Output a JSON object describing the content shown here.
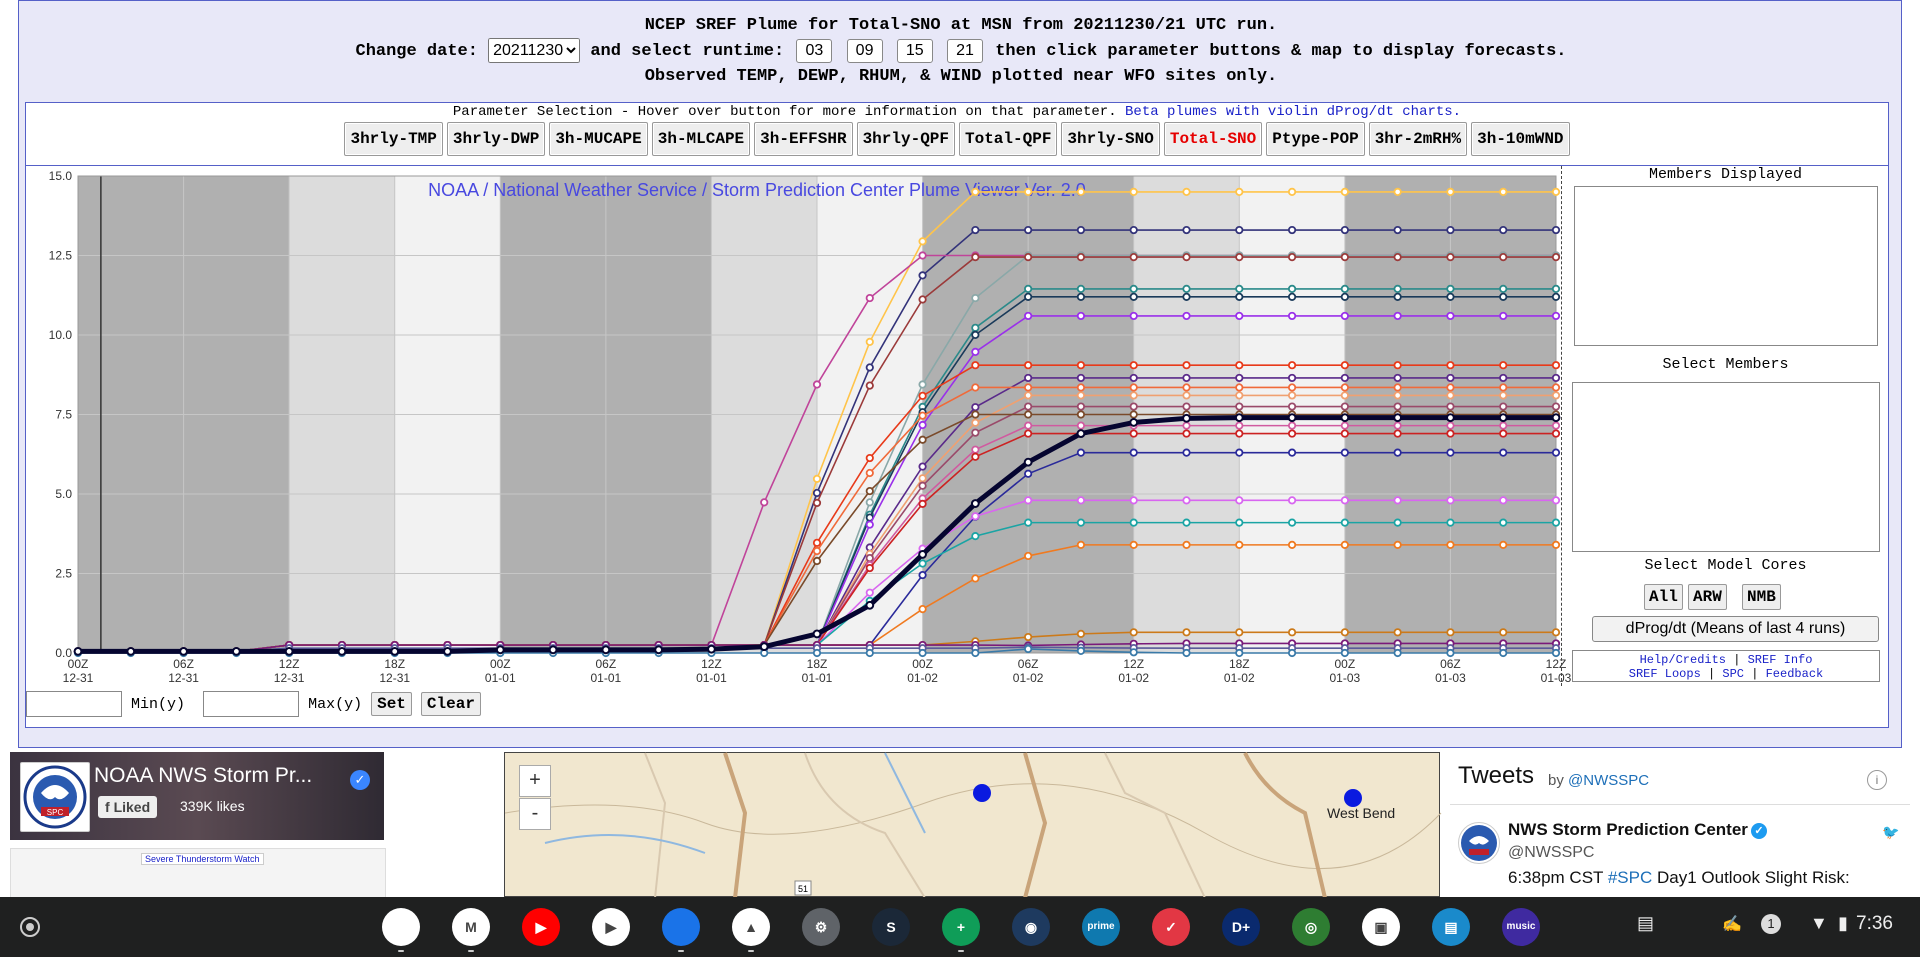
{
  "title": {
    "line1": "NCEP SREF Plume for Total-SNO at MSN from 20211230/21 UTC run.",
    "change_date": "Change date:",
    "date_value": "20211230",
    "and_select": "and select runtime:",
    "runtimes": [
      "03",
      "09",
      "15",
      "21"
    ],
    "then_click": "then click parameter buttons & map to display forecasts.",
    "line3": "Observed TEMP, DEWP, RHUM, & WIND plotted near WFO sites only."
  },
  "params": {
    "header": "Parameter Selection - Hover over button for more information on that parameter.",
    "beta": "Beta plumes with violin dProg/dt charts.",
    "buttons": [
      "3hrly-TMP",
      "3hrly-DWP",
      "3h-MUCAPE",
      "3h-MLCAPE",
      "3h-EFFSHR",
      "3hrly-QPF",
      "Total-QPF",
      "3hrly-SNO",
      "Total-SNO",
      "Ptype-POP",
      "3hr-2mRH%",
      "3h-10mWND"
    ],
    "active": "Total-SNO"
  },
  "chart_data": {
    "type": "line",
    "title": "NOAA / National Weather Service / Storm Prediction Center Plume Viewer Ver. 2.0",
    "ylim": [
      0,
      15
    ],
    "yticks": [
      "0.0",
      "2.5",
      "5.0",
      "7.5",
      "10.0",
      "12.5",
      "15.0"
    ],
    "x_ticks": [
      [
        "00Z",
        "12-31"
      ],
      [
        "06Z",
        "12-31"
      ],
      [
        "12Z",
        "12-31"
      ],
      [
        "18Z",
        "12-31"
      ],
      [
        "00Z",
        "01-01"
      ],
      [
        "06Z",
        "01-01"
      ],
      [
        "12Z",
        "01-01"
      ],
      [
        "18Z",
        "01-01"
      ],
      [
        "00Z",
        "01-02"
      ],
      [
        "06Z",
        "01-02"
      ],
      [
        "12Z",
        "01-02"
      ],
      [
        "18Z",
        "01-02"
      ],
      [
        "00Z",
        "01-03"
      ],
      [
        "06Z",
        "01-03"
      ],
      [
        "12Z",
        "01-03"
      ]
    ],
    "x_hours": [
      0,
      3,
      6,
      9,
      12,
      15,
      18,
      21,
      24,
      27,
      30,
      33,
      36,
      39,
      42,
      45,
      48,
      51,
      54,
      57,
      60,
      63,
      66,
      69,
      72,
      75,
      78,
      81,
      84
    ],
    "x_range_hours": [
      0,
      84
    ],
    "night_bands_hours": [
      [
        0,
        12
      ],
      [
        24,
        36
      ],
      [
        48,
        60
      ],
      [
        72,
        84
      ]
    ],
    "dusk_bands_hours": [
      [
        12,
        18
      ],
      [
        36,
        42
      ],
      [
        60,
        66
      ]
    ],
    "now_line_hours": 1.3,
    "mean": {
      "color": "#050530",
      "final": 7.4,
      "values": [
        0.05,
        0.05,
        0.05,
        0.05,
        0.05,
        0.05,
        0.05,
        0.05,
        0.1,
        0.1,
        0.1,
        0.1,
        0.12,
        0.2,
        0.6,
        1.5,
        3.1,
        4.7,
        6.0,
        6.9,
        7.25,
        7.38,
        7.4,
        7.4,
        7.4,
        7.4,
        7.4,
        7.4,
        7.4
      ]
    },
    "members": [
      {
        "color": "#ffc44a",
        "onset": 39,
        "final": 14.5
      },
      {
        "color": "#33337a",
        "onset": 39,
        "final": 13.3
      },
      {
        "color": "#c0449a",
        "onset": 36,
        "final": 12.5
      },
      {
        "color": "#8aa8a8",
        "onset": 42,
        "final": 12.5
      },
      {
        "color": "#9b3a3a",
        "onset": 39,
        "final": 12.45
      },
      {
        "color": "#2a8a8a",
        "onset": 42,
        "final": 11.45
      },
      {
        "color": "#1a3a5a",
        "onset": 42,
        "final": 11.2
      },
      {
        "color": "#9a30ea",
        "onset": 42,
        "final": 10.6
      },
      {
        "color": "#e83a1a",
        "onset": 39,
        "final": 9.05
      },
      {
        "color": "#5a2a8a",
        "onset": 42,
        "final": 8.65
      },
      {
        "color": "#f06a3a",
        "onset": 39,
        "final": 8.35
      },
      {
        "color": "#f0a070",
        "onset": 42,
        "final": 8.1
      },
      {
        "color": "#9a4a6a",
        "onset": 42,
        "final": 7.75
      },
      {
        "color": "#7a4a2a",
        "onset": 39,
        "final": 7.5
      },
      {
        "color": "#d05aa0",
        "onset": 42,
        "final": 7.15
      },
      {
        "color": "#cc2222",
        "onset": 42,
        "final": 6.9
      },
      {
        "color": "#2a2a9a",
        "onset": 45,
        "final": 6.3
      },
      {
        "color": "#d866f0",
        "onset": 42,
        "final": 4.8
      },
      {
        "color": "#1aa4a4",
        "onset": 42,
        "final": 4.1
      },
      {
        "color": "#f07a20",
        "onset": 45,
        "final": 3.4
      },
      {
        "color": "#cc7a1a",
        "onset": 48,
        "final": 0.65
      },
      {
        "color": "#7a1a7a",
        "onset": 51,
        "final": 0.3
      },
      {
        "color": "#5a5a9a",
        "onset": 51,
        "final": 0.15
      },
      {
        "color": "#3a7aa8",
        "onset": 51,
        "final": 0.0
      }
    ]
  },
  "side": {
    "members_displayed": "Members Displayed",
    "select_members": "Select Members",
    "select_cores": "Select Model Cores",
    "cores": [
      "All",
      "ARW",
      "NMB"
    ],
    "dprog": "dProg/dt (Means of last 4 runs)",
    "help": "Help/Credits",
    "sref_info": "SREF Info",
    "sref_loops": "SREF Loops",
    "spc": "SPC",
    "feedback": "Feedback",
    "sep": "|"
  },
  "ycontrols": {
    "min": "Min(y)",
    "max": "Max(y)",
    "set": "Set",
    "clear": "Clear"
  },
  "facebook": {
    "name": "NOAA NWS Storm Pr...",
    "liked": "Liked",
    "likes": "339K likes",
    "watch": "Severe Thunderstorm Watch"
  },
  "map": {
    "zoom_in": "+",
    "zoom_out": "-",
    "city": "West Bend",
    "route": "51"
  },
  "tweets": {
    "title": "Tweets",
    "by": "by",
    "handle_link": "@NWSSPC",
    "name": "NWS Storm Prediction Center",
    "handle": "@NWSSPC",
    "text_pre": "6:38pm CST ",
    "tag": "#SPC",
    "text_post": " Day1 Outlook Slight Risk:"
  },
  "shelf": {
    "apps": [
      {
        "name": "chrome-icon",
        "color": "#ffffff",
        "label": ""
      },
      {
        "name": "gmail-icon",
        "color": "#ffffff",
        "label": "M"
      },
      {
        "name": "youtube-icon",
        "color": "#ff0000",
        "label": "▶"
      },
      {
        "name": "play-store-icon",
        "color": "#ffffff",
        "label": "▶"
      },
      {
        "name": "files-icon",
        "color": "#1a73e8",
        "label": ""
      },
      {
        "name": "drive-icon",
        "color": "#ffffff",
        "label": "▲"
      },
      {
        "name": "settings-icon",
        "color": "#5f6368",
        "label": "⚙"
      },
      {
        "name": "steam-icon",
        "color": "#1b2838",
        "label": "S"
      },
      {
        "name": "sheets-icon",
        "color": "#0f9d58",
        "label": "+"
      },
      {
        "name": "gamepad-icon",
        "color": "#1e3a5f",
        "label": "◉"
      },
      {
        "name": "prime-video-icon",
        "color": "#0f79af",
        "label": "prime"
      },
      {
        "name": "pocket-icon",
        "color": "#e23744",
        "label": "✓"
      },
      {
        "name": "disney-plus-icon",
        "color": "#0a2a6e",
        "label": "D+"
      },
      {
        "name": "radar-icon",
        "color": "#2e7d32",
        "label": "◎"
      },
      {
        "name": "photo-icon",
        "color": "#ffffff",
        "label": "▣"
      },
      {
        "name": "print-icon",
        "color": "#1a8acb",
        "label": "▤"
      },
      {
        "name": "amazon-music-icon",
        "color": "#3f2aa0",
        "label": "music"
      }
    ],
    "notifications": "1",
    "time": "7:36"
  }
}
